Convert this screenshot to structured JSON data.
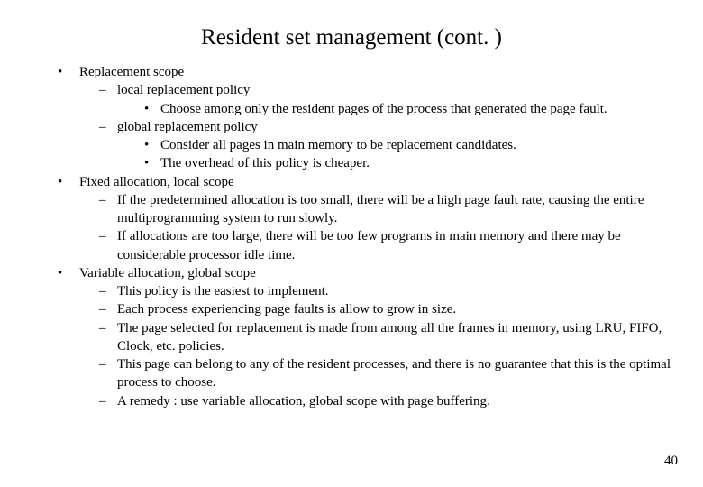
{
  "title": "Resident set management (cont. )",
  "page_number": "40",
  "style": {
    "background_color": "#ffffff",
    "text_color": "#000000",
    "title_fontsize": 25,
    "body_fontsize": 15,
    "font_family": "Times New Roman",
    "slide_width": 780,
    "slide_height": 540
  },
  "b1": {
    "text": "Replacement scope",
    "c1": {
      "text": "local replacement policy",
      "d1": "Choose among only the resident pages of the process that generated the page fault."
    },
    "c2": {
      "text": "global replacement policy",
      "d1": "Consider all pages in main memory to be replacement candidates.",
      "d2": "The overhead of this policy is cheaper."
    }
  },
  "b2": {
    "text": "Fixed allocation, local scope",
    "c1": "If the predetermined allocation is too small, there will be a high page fault rate, causing the entire multiprogramming system to run slowly.",
    "c2": "If allocations are too large, there will be too few programs in main memory and there may be considerable processor idle time."
  },
  "b3": {
    "text": "Variable allocation, global scope",
    "c1": "This policy is the easiest to implement.",
    "c2": "Each process experiencing page faults is allow to grow in size.",
    "c3": "The page selected for replacement is made from among all the frames in memory, using LRU, FIFO, Clock, etc. policies.",
    "c4": "This page can belong to any of the resident processes, and there is no guarantee that this is the optimal process to choose.",
    "c5": "A remedy : use variable allocation, global scope with page buffering."
  }
}
